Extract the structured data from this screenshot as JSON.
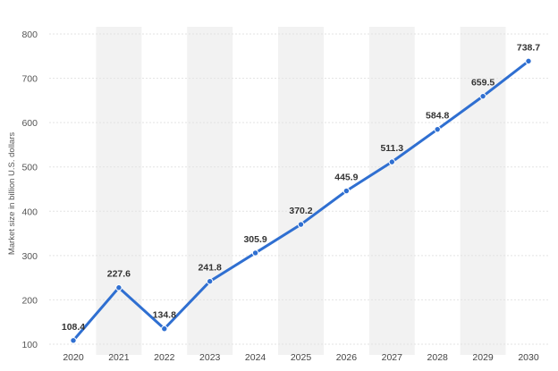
{
  "chart_data": {
    "type": "line",
    "title": "",
    "xlabel": "",
    "ylabel": "Market size in billion U.S. dollars",
    "categories": [
      "2020",
      "2021",
      "2022",
      "2023",
      "2024",
      "2025",
      "2026",
      "2027",
      "2028",
      "2029",
      "2030"
    ],
    "series": [
      {
        "values": [
          108.4,
          227.6,
          134.8,
          241.8,
          305.9,
          370.2,
          445.9,
          511.3,
          584.8,
          659.5,
          738.7
        ],
        "labels": [
          "108.4",
          "227.6",
          "134.8",
          "241.8",
          "305.9",
          "370.2",
          "445.9",
          "511.3",
          "584.8",
          "659.5",
          "738.7"
        ],
        "color": "#2f6fd1"
      }
    ],
    "ylim": [
      100,
      800
    ],
    "yticks": [
      "100",
      "200",
      "300",
      "400",
      "500",
      "600",
      "700",
      "800"
    ],
    "grid": true,
    "legend": "none",
    "colors": {
      "line": "#2f6fd1",
      "band": "#f2f2f2",
      "grid": "#e3e3e3"
    }
  }
}
